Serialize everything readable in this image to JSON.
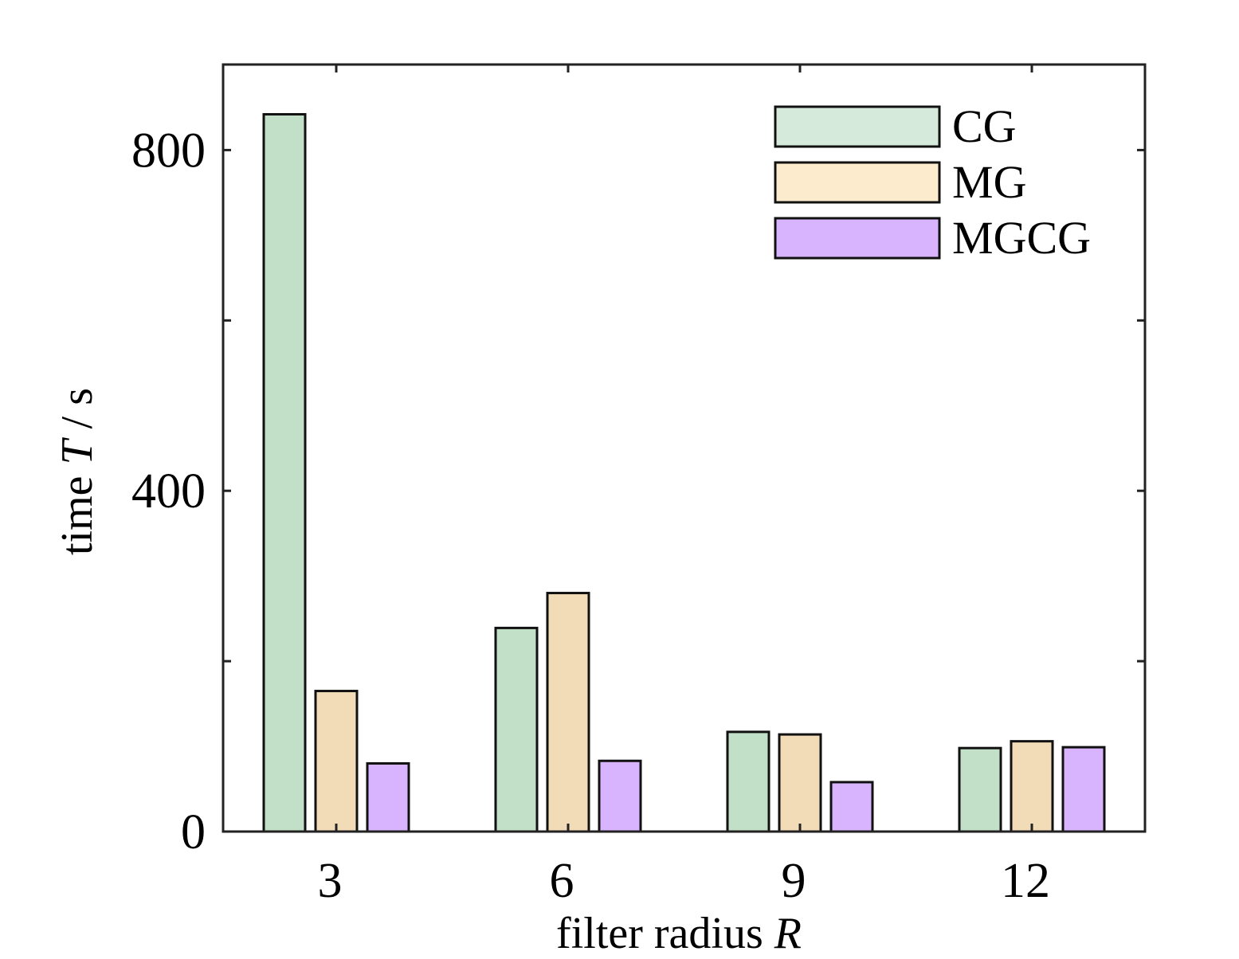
{
  "chart_data": {
    "type": "bar",
    "title": "",
    "xlabel": "filter radius",
    "xlabel_var": "R",
    "ylabel": "time",
    "ylabel_var": "T",
    "ylabel_unit": "/ s",
    "categories": [
      "3",
      "6",
      "9",
      "12"
    ],
    "series": [
      {
        "name": "CG",
        "values": [
          842,
          239,
          117,
          98
        ],
        "color": "#c2dfc7"
      },
      {
        "name": "MG",
        "values": [
          165,
          280,
          114,
          106
        ],
        "color": "#f2dcb7"
      },
      {
        "name": "MGCG",
        "values": [
          80,
          83,
          58,
          99
        ],
        "color": "#d8b4ff"
      }
    ],
    "legend_colors": [
      "#d6eadb",
      "#fcebcd",
      "#d8b4ff"
    ],
    "ylim": [
      0,
      900
    ],
    "yticks": [
      0,
      200,
      400,
      600,
      800
    ],
    "ytick_labels": [
      "0",
      "",
      "400",
      "",
      "800"
    ],
    "grid": false,
    "legend_position": "top-right"
  }
}
